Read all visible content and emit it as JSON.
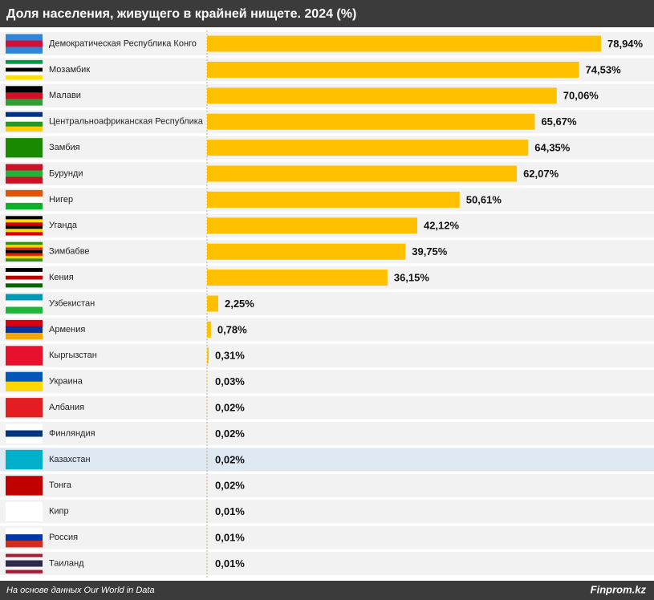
{
  "chart_data": {
    "type": "bar",
    "orientation": "horizontal",
    "title": "Доля населения, живущего в крайней нищете. 2024 (%)",
    "categories": [
      "Демократическая Республика Конго",
      "Мозамбик",
      "Малави",
      "Центральноафриканская Республика",
      "Замбия",
      "Бурунди",
      "Нигер",
      "Уганда",
      "Зимбабве",
      "Кения",
      "Узбекистан",
      "Армения",
      "Кыргызстан",
      "Украина",
      "Албания",
      "Финляндия",
      "Казахстан",
      "Тонга",
      "Кипр",
      "Россия",
      "Таиланд"
    ],
    "values": [
      78.94,
      74.53,
      70.06,
      65.67,
      64.35,
      62.07,
      50.61,
      42.12,
      39.75,
      36.15,
      2.25,
      0.78,
      0.31,
      0.03,
      0.02,
      0.02,
      0.02,
      0.02,
      0.01,
      0.01,
      0.01
    ],
    "value_labels": [
      "78,94%",
      "74,53%",
      "70,06%",
      "65,67%",
      "64,35%",
      "62,07%",
      "50,61%",
      "42,12%",
      "39,75%",
      "36,15%",
      "2,25%",
      "0,78%",
      "0,31%",
      "0,03%",
      "0,02%",
      "0,02%",
      "0,02%",
      "0,02%",
      "0,01%",
      "0,01%",
      "0,01%"
    ],
    "color": "#ffc000",
    "highlight": 16,
    "source": "На основе данных Our World in Data",
    "brand": "Finprom.kz"
  }
}
